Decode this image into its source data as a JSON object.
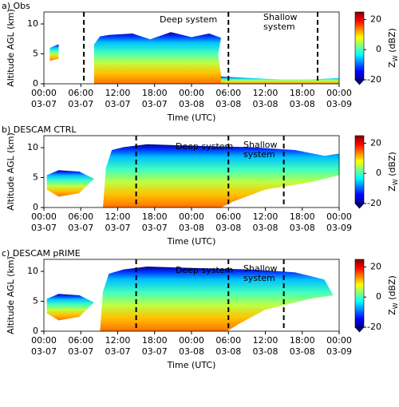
{
  "chart_data": [
    {
      "type": "time-height",
      "title": "a) Obs",
      "xlabel": "Time (UTC)",
      "ylabel": "Altitude AGL (km)",
      "xlim": [
        0,
        48
      ],
      "xticks": [
        {
          "value": 0,
          "label": "00:00\n03-07"
        },
        {
          "value": 6,
          "label": "06:00\n03-07"
        },
        {
          "value": 12,
          "label": "12:00\n03-07"
        },
        {
          "value": 18,
          "label": "18:00\n03-07"
        },
        {
          "value": 24,
          "label": "00:00\n03-08"
        },
        {
          "value": 30,
          "label": "06:00\n03-08"
        },
        {
          "value": 36,
          "label": "12:00\n03-08"
        },
        {
          "value": 42,
          "label": "18:00\n03-08"
        },
        {
          "value": 48,
          "label": "00:00\n03-09"
        }
      ],
      "ylim": [
        0,
        12
      ],
      "yticks": [
        0,
        5,
        10
      ],
      "vlines": [
        6.5,
        30,
        44.5
      ],
      "annotations": [
        "Deep system",
        "Shallow\nsystem"
      ],
      "colorbar": {
        "label": "Z_W (dBZ)",
        "lim": [
          -20,
          25
        ],
        "ticks": [
          -20,
          0,
          20
        ]
      }
    },
    {
      "type": "time-height",
      "title": "b) DESCAM CTRL",
      "xlabel": "Time (UTC)",
      "ylabel": "Altitude AGL (km)",
      "xlim": [
        0,
        48
      ],
      "xticks": [
        {
          "value": 0,
          "label": "00:00\n03-07"
        },
        {
          "value": 6,
          "label": "06:00\n03-07"
        },
        {
          "value": 12,
          "label": "12:00\n03-07"
        },
        {
          "value": 18,
          "label": "18:00\n03-07"
        },
        {
          "value": 24,
          "label": "00:00\n03-08"
        },
        {
          "value": 30,
          "label": "06:00\n03-08"
        },
        {
          "value": 36,
          "label": "12:00\n03-08"
        },
        {
          "value": 42,
          "label": "18:00\n03-08"
        },
        {
          "value": 48,
          "label": "00:00\n03-09"
        }
      ],
      "ylim": [
        0,
        12
      ],
      "yticks": [
        0,
        5,
        10
      ],
      "vlines": [
        15,
        30,
        39
      ],
      "annotations": [
        "Deep system",
        "Shallow\nsystem"
      ],
      "colorbar": {
        "label": "Z_W (dBZ)",
        "lim": [
          -20,
          25
        ],
        "ticks": [
          -20,
          0,
          20
        ]
      }
    },
    {
      "type": "time-height",
      "title": "c) DESCAM pRIME",
      "xlabel": "Time (UTC)",
      "ylabel": "Altitude AGL (km)",
      "xlim": [
        0,
        48
      ],
      "xticks": [
        {
          "value": 0,
          "label": "00:00\n03-07"
        },
        {
          "value": 6,
          "label": "06:00\n03-07"
        },
        {
          "value": 12,
          "label": "12:00\n03-07"
        },
        {
          "value": 18,
          "label": "18:00\n03-07"
        },
        {
          "value": 24,
          "label": "00:00\n03-08"
        },
        {
          "value": 30,
          "label": "06:00\n03-08"
        },
        {
          "value": 36,
          "label": "12:00\n03-08"
        },
        {
          "value": 42,
          "label": "18:00\n03-08"
        },
        {
          "value": 48,
          "label": "00:00\n03-09"
        }
      ],
      "ylim": [
        0,
        12
      ],
      "yticks": [
        0,
        5,
        10
      ],
      "vlines": [
        15,
        30,
        39
      ],
      "annotations": [
        "Deep system",
        "Shallow\nsystem"
      ],
      "colorbar": {
        "label": "Z_W (dBZ)",
        "lim": [
          -20,
          25
        ],
        "ticks": [
          -20,
          0,
          20
        ]
      }
    }
  ]
}
